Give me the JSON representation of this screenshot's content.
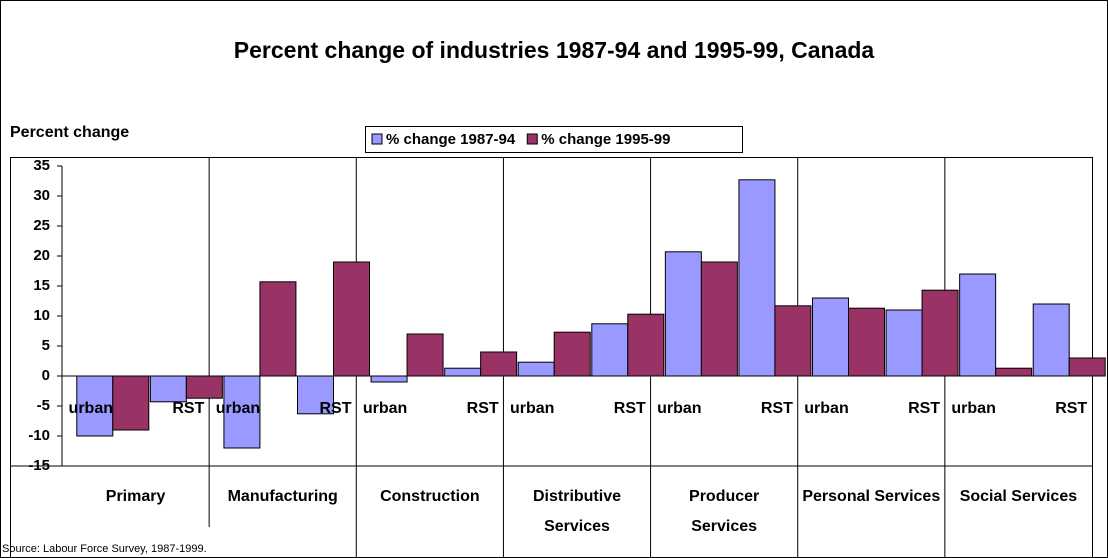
{
  "chart_data": {
    "type": "bar",
    "title": "Percent change of industries 1987-94 and 1995-99, Canada",
    "y_label": "Percent change",
    "source": "Source: Labour Force Survey, 1987-1999.",
    "groups": [
      "Primary",
      "Manufacturing",
      "Construction",
      "Distributive Services",
      "Producer Services",
      "Personal Services",
      "Social Services"
    ],
    "categories": [
      "urban",
      "RST",
      "urban",
      "RST",
      "urban",
      "RST",
      "urban",
      "RST",
      "urban",
      "RST",
      "urban",
      "RST",
      "urban",
      "RST"
    ],
    "series": [
      {
        "name": "% change 1987-94",
        "color": "#9999ff",
        "values": [
          -10,
          -4.3,
          -12,
          -6.3,
          -1,
          1.3,
          2.3,
          8.7,
          20.7,
          32.7,
          13,
          11,
          17,
          12
        ]
      },
      {
        "name": "% change 1995-99",
        "color": "#993366",
        "values": [
          -9,
          -3.7,
          15.7,
          19,
          7,
          4,
          7.3,
          10.3,
          19,
          11.7,
          11.3,
          14.3,
          1.3,
          3
        ]
      }
    ],
    "ylim": [
      -15,
      35
    ],
    "yticks": [
      -15,
      -10,
      -5,
      0,
      5,
      10,
      15,
      20,
      25,
      30,
      35
    ],
    "legend": "top"
  }
}
